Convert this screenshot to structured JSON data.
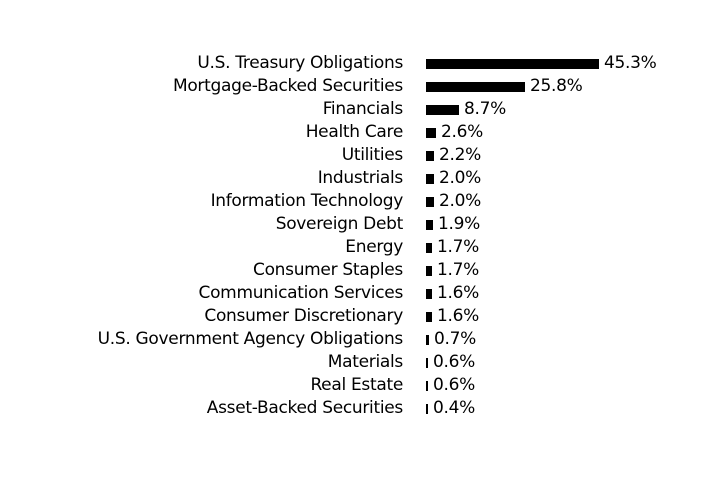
{
  "chart_data": {
    "type": "bar",
    "orientation": "horizontal",
    "title": "",
    "xlabel": "",
    "ylabel": "",
    "grid": false,
    "legend": false,
    "xlim": [
      0,
      50
    ],
    "bar_color": "#000000",
    "text_color": "#000000",
    "background_color": "#ffffff",
    "categories": [
      "U.S. Treasury Obligations",
      "Mortgage-Backed Securities",
      "Financials",
      "Health Care",
      "Utilities",
      "Industrials",
      "Information Technology",
      "Sovereign Debt",
      "Energy",
      "Consumer Staples",
      "Communication Services",
      "Consumer Discretionary",
      "U.S. Government Agency Obligations",
      "Materials",
      "Real Estate",
      "Asset-Backed Securities"
    ],
    "values": [
      45.3,
      25.8,
      8.7,
      2.6,
      2.2,
      2.0,
      2.0,
      1.9,
      1.7,
      1.7,
      1.6,
      1.6,
      0.7,
      0.6,
      0.6,
      0.4
    ],
    "value_labels": [
      "45.3%",
      "25.8%",
      "8.7%",
      "2.6%",
      "2.2%",
      "2.0%",
      "2.0%",
      "1.9%",
      "1.7%",
      "1.7%",
      "1.6%",
      "1.6%",
      "0.7%",
      "0.6%",
      "0.6%",
      "0.4%"
    ]
  }
}
